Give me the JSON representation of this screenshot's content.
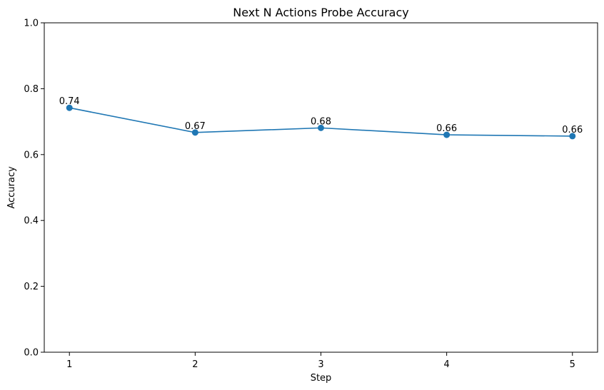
{
  "chart_data": {
    "type": "line",
    "title": "Next N Actions Probe Accuracy",
    "xlabel": "Step",
    "ylabel": "Accuracy",
    "x": [
      1,
      2,
      3,
      4,
      5
    ],
    "x_tick_labels": [
      "1",
      "2",
      "3",
      "4",
      "5"
    ],
    "ylim": [
      0.0,
      1.0
    ],
    "y_ticks": [
      0.0,
      0.2,
      0.4,
      0.6,
      0.8,
      1.0
    ],
    "y_tick_labels": [
      "0.0",
      "0.2",
      "0.4",
      "0.6",
      "0.8",
      "1.0"
    ],
    "series": [
      {
        "values": [
          0.742,
          0.667,
          0.681,
          0.66,
          0.656
        ],
        "point_labels": [
          "0.74",
          "0.67",
          "0.68",
          "0.66",
          "0.66"
        ],
        "color": "#1f77b4",
        "marker": "circle"
      }
    ],
    "grid": false,
    "legend": "none"
  }
}
